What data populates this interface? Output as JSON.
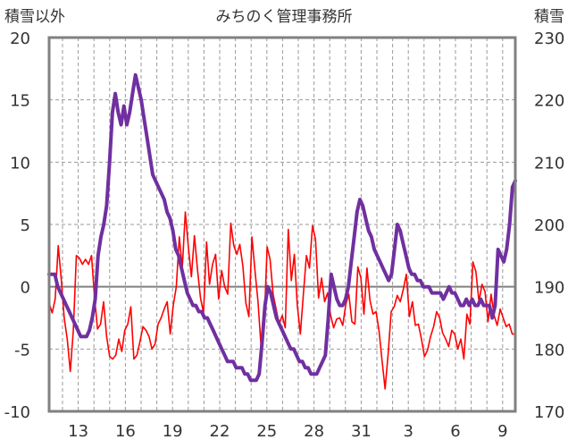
{
  "chart_data": {
    "type": "line",
    "title": "みちのく管理事務所",
    "left_axis": {
      "label": "積雪以外",
      "ylim": [
        -10,
        20
      ],
      "ticks": [
        -10,
        -5,
        0,
        5,
        10,
        15,
        20
      ]
    },
    "right_axis": {
      "label": "積雪",
      "ylim": [
        170,
        230
      ],
      "ticks": [
        170,
        180,
        190,
        200,
        210,
        220,
        230
      ]
    },
    "x_ticks": [
      "13",
      "16",
      "19",
      "22",
      "25",
      "28",
      "31",
      "3",
      "6",
      "9"
    ],
    "grid": true,
    "colors": {
      "frame": "#808080",
      "grid": "#999999",
      "zero_line": "#808080",
      "temperature": "#ff0000",
      "snow": "#7030a0"
    },
    "series": [
      {
        "axis": "left",
        "values": [
          -1.3,
          -2.1,
          -1.0,
          3.3,
          0.6,
          -2.5,
          -4.2,
          -6.8,
          -3.5,
          2.5,
          2.3,
          1.8,
          2.2,
          1.8,
          2.5,
          -0.8,
          -3.4,
          -3.0,
          -1.2,
          -4.0,
          -5.6,
          -5.8,
          -5.5,
          -4.2,
          -5.2,
          -3.5,
          -3.0,
          -1.6,
          -5.8,
          -5.5,
          -4.4,
          -3.2,
          -3.5,
          -4.0,
          -5.0,
          -4.6,
          -3.0,
          -2.5,
          -1.8,
          -1.2,
          -3.8,
          -1.5,
          0.0,
          4.0,
          1.5,
          6.0,
          3.2,
          0.8,
          4.1,
          1.4,
          -0.9,
          -2.1,
          3.6,
          0.2,
          1.8,
          2.6,
          -1.0,
          1.3,
          0.0,
          -0.6,
          5.1,
          3.3,
          2.6,
          3.4,
          1.7,
          -1.3,
          -2.4,
          4.0,
          1.3,
          -1.2,
          -4.8,
          -3.2,
          3.2,
          2.2,
          -0.6,
          -1.8,
          -3.0,
          -2.3,
          -3.3,
          4.6,
          0.5,
          2.6,
          -1.5,
          -3.8,
          -0.6,
          2.5,
          1.5,
          4.9,
          3.8,
          -0.9,
          0.7,
          -1.2,
          -0.5,
          -2.3,
          -3.3,
          -2.6,
          -2.5,
          -3.1,
          -1.4,
          -0.6,
          -2.8,
          -3.0,
          1.6,
          0.7,
          -2.2,
          1.5,
          -1.1,
          -2.2,
          -2.0,
          -3.6,
          -6.0,
          -8.2,
          -5.4,
          -2.0,
          -1.6,
          -0.7,
          -1.2,
          -0.2,
          1.0,
          -2.4,
          -1.2,
          -3.1,
          -3.0,
          -4.2,
          -5.6,
          -5.1,
          -4.0,
          -3.2,
          -2.0,
          -2.5,
          -3.7,
          -4.2,
          -4.8,
          -3.5,
          -3.8,
          -5.0,
          -4.2,
          -5.8,
          -2.2,
          -3.0,
          2.0,
          1.2,
          -1.2,
          0.2,
          -0.4,
          -2.8,
          -0.6,
          -2.3,
          -3.1,
          -1.8,
          -2.5,
          -3.2,
          -3.0,
          -3.8,
          -3.8
        ]
      },
      {
        "axis": "right",
        "values": [
          192,
          192,
          192,
          190,
          189,
          188,
          187,
          186,
          185,
          184,
          183,
          182,
          182,
          182,
          183,
          185,
          188,
          195,
          198,
          200,
          203,
          210,
          218,
          221,
          218,
          216,
          219,
          216,
          218,
          221,
          224,
          222,
          220,
          217,
          214,
          211,
          208,
          207,
          206,
          205,
          204,
          202,
          201,
          199,
          196,
          195,
          193,
          191,
          189,
          188,
          187,
          187,
          186,
          186,
          185,
          185,
          184,
          183,
          182,
          181,
          180,
          179,
          178,
          178,
          178,
          177,
          177,
          177,
          176,
          176,
          175,
          175,
          175,
          176,
          181,
          187,
          190,
          189,
          187,
          185,
          184,
          183,
          182,
          181,
          180,
          180,
          179,
          178,
          178,
          177,
          177,
          176,
          176,
          176,
          177,
          178,
          179,
          185,
          192,
          190,
          188,
          187,
          187,
          188,
          190,
          194,
          198,
          202,
          204,
          203,
          201,
          199,
          198,
          196,
          195,
          194,
          193,
          192,
          191,
          192,
          196,
          200,
          199,
          197,
          195,
          193,
          192,
          192,
          191,
          191,
          190,
          190,
          190,
          189,
          189,
          189,
          189,
          188,
          189,
          190,
          189,
          189,
          188,
          187,
          187,
          188,
          187,
          188,
          187,
          187,
          188,
          187,
          187,
          187,
          185,
          187,
          196,
          195,
          194,
          196,
          200,
          206,
          207
        ]
      }
    ]
  }
}
